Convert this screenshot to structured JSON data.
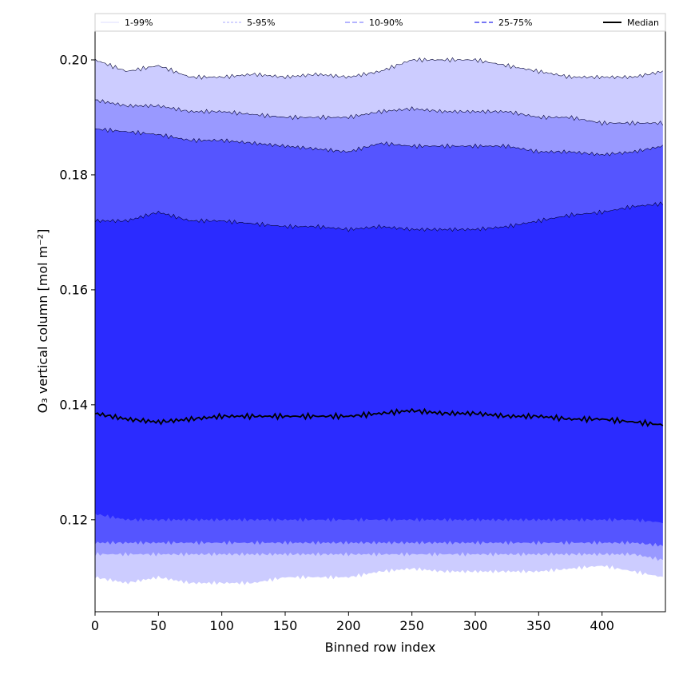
{
  "chart_data": {
    "type": "area",
    "title": "",
    "xlabel": "Binned row index",
    "ylabel": "O₃ vertical column [mol m⁻²]",
    "xlim": [
      0,
      450
    ],
    "ylim": [
      0.104,
      0.205
    ],
    "x_ticks": [
      0,
      50,
      100,
      150,
      200,
      250,
      300,
      350,
      400
    ],
    "x_tick_labels": [
      "0",
      "50",
      "100",
      "150",
      "200",
      "250",
      "300",
      "350",
      "400"
    ],
    "y_ticks": [
      0.12,
      0.14,
      0.16,
      0.18,
      0.2
    ],
    "y_tick_labels": [
      "0.12",
      "0.14",
      "0.16",
      "0.18",
      "0.20"
    ],
    "grid": false,
    "legend_placement": "top, above plot, single row",
    "x": [
      0,
      25,
      50,
      75,
      100,
      125,
      150,
      175,
      200,
      225,
      250,
      275,
      300,
      325,
      350,
      375,
      400,
      425,
      448
    ],
    "series": [
      {
        "name": "1-99%",
        "color": "#ccccff",
        "lower": [
          0.11,
          0.109,
          0.11,
          0.109,
          0.109,
          0.109,
          0.11,
          0.11,
          0.11,
          0.111,
          0.1115,
          0.111,
          0.111,
          0.111,
          0.111,
          0.1115,
          0.112,
          0.111,
          0.11
        ],
        "upper": [
          0.2,
          0.198,
          0.199,
          0.197,
          0.197,
          0.1975,
          0.197,
          0.1975,
          0.197,
          0.198,
          0.2,
          0.2,
          0.2,
          0.199,
          0.198,
          0.197,
          0.197,
          0.197,
          0.198
        ]
      },
      {
        "name": "5-95%",
        "color": "#9999ff",
        "lower": [
          0.114,
          0.114,
          0.114,
          0.114,
          0.114,
          0.114,
          0.114,
          0.114,
          0.114,
          0.114,
          0.114,
          0.114,
          0.114,
          0.114,
          0.114,
          0.114,
          0.114,
          0.114,
          0.113
        ],
        "upper": [
          0.193,
          0.192,
          0.192,
          0.191,
          0.191,
          0.1905,
          0.19,
          0.19,
          0.19,
          0.191,
          0.1915,
          0.191,
          0.191,
          0.191,
          0.19,
          0.19,
          0.189,
          0.189,
          0.189
        ]
      },
      {
        "name": "10-90%",
        "color": "#5555ff",
        "lower": [
          0.116,
          0.116,
          0.116,
          0.116,
          0.116,
          0.116,
          0.116,
          0.116,
          0.116,
          0.116,
          0.116,
          0.116,
          0.116,
          0.116,
          0.116,
          0.116,
          0.116,
          0.116,
          0.1155
        ],
        "upper": [
          0.188,
          0.1875,
          0.187,
          0.186,
          0.186,
          0.1855,
          0.185,
          0.1845,
          0.184,
          0.1855,
          0.185,
          0.185,
          0.185,
          0.185,
          0.184,
          0.184,
          0.1835,
          0.184,
          0.185
        ]
      },
      {
        "name": "25-75%",
        "color": "#2b2bff",
        "lower": [
          0.121,
          0.12,
          0.12,
          0.12,
          0.12,
          0.12,
          0.12,
          0.12,
          0.12,
          0.12,
          0.12,
          0.12,
          0.12,
          0.12,
          0.12,
          0.12,
          0.12,
          0.12,
          0.1195
        ],
        "upper": [
          0.172,
          0.172,
          0.1735,
          0.172,
          0.172,
          0.1715,
          0.171,
          0.171,
          0.1705,
          0.171,
          0.1705,
          0.1705,
          0.1705,
          0.171,
          0.172,
          0.173,
          0.1735,
          0.1745,
          0.175
        ]
      },
      {
        "name": "Median",
        "color": "#000000",
        "values": [
          0.1385,
          0.1375,
          0.137,
          0.1375,
          0.138,
          0.138,
          0.138,
          0.138,
          0.138,
          0.1385,
          0.139,
          0.1385,
          0.1385,
          0.138,
          0.138,
          0.1375,
          0.1375,
          0.137,
          0.1365
        ]
      }
    ]
  }
}
